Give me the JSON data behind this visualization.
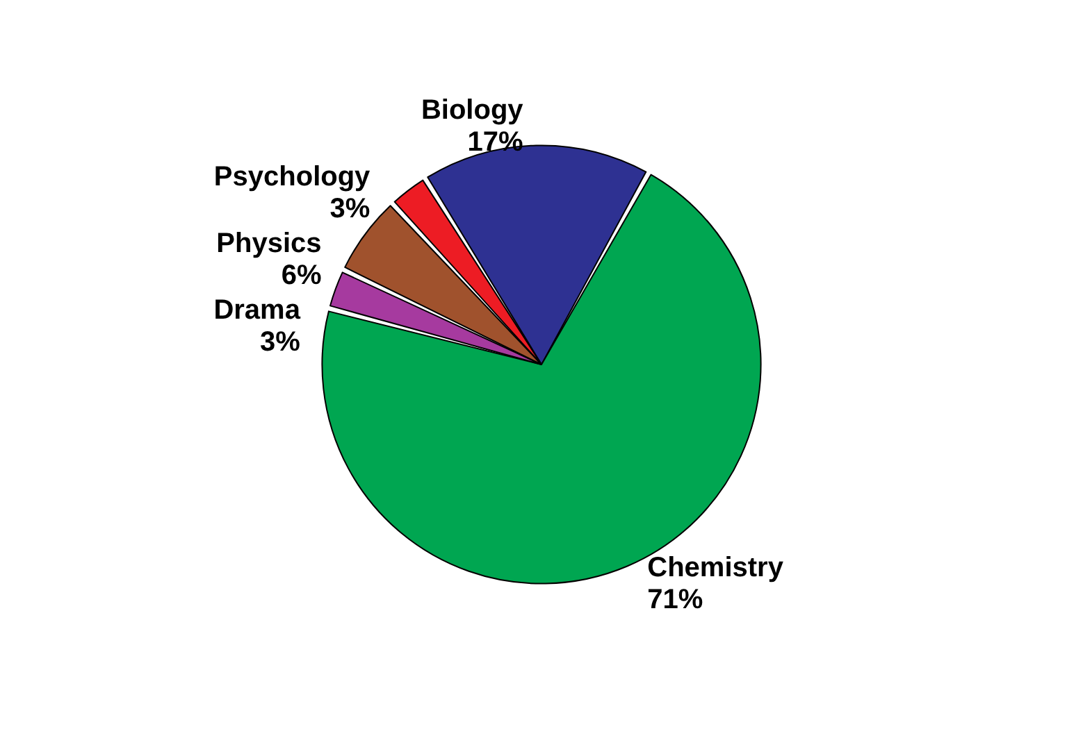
{
  "chart_data": {
    "type": "pie",
    "categories": [
      "Biology",
      "Chemistry",
      "Drama",
      "Physics",
      "Psychology"
    ],
    "values": [
      17,
      71,
      3,
      6,
      3
    ],
    "value_labels": [
      "17%",
      "71%",
      "3%",
      "6%",
      "3%"
    ],
    "colors": [
      "#2e3192",
      "#00a651",
      "#a63a9f",
      "#a0522d",
      "#ed1c24"
    ]
  }
}
